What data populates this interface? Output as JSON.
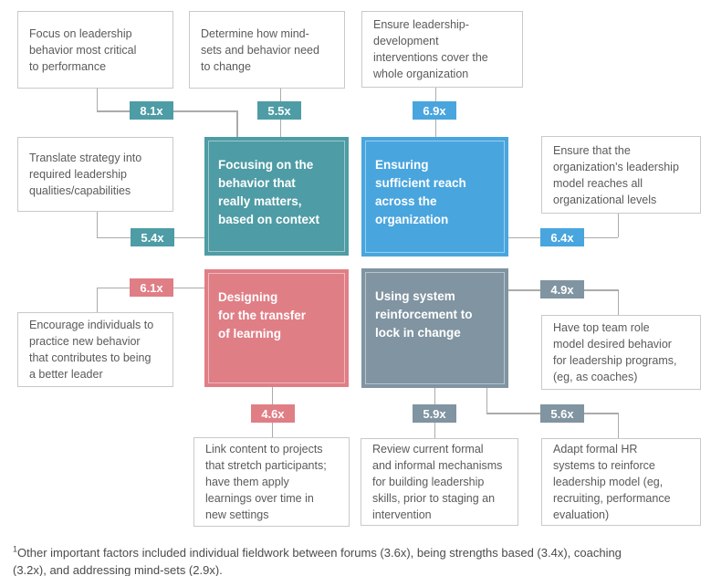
{
  "colors": {
    "teal": "#4E9CA5",
    "blue": "#49A5DE",
    "pink": "#E07E86",
    "slate": "#8094A1",
    "connector": "#ABABAB",
    "box_border": "#C9C9C9",
    "box_text": "#595A5C"
  },
  "outer_boxes": {
    "focus": {
      "lines": [
        "Focus on leadership",
        "behavior most critical",
        "to performance"
      ]
    },
    "determine": {
      "lines": [
        "Determine how mind-",
        "sets and behavior need",
        "to change"
      ]
    },
    "coverage": {
      "lines": [
        "Ensure leadership-",
        "development",
        "interventions cover the",
        "whole organization"
      ]
    },
    "translate": {
      "lines": [
        "Translate strategy into",
        "required leadership",
        "qualities/capabilities"
      ]
    },
    "model": {
      "lines": [
        "Ensure that the",
        "organization's leadership",
        "model reaches all",
        "organizational levels"
      ]
    },
    "encourage": {
      "lines": [
        "Encourage individuals to",
        "practice new behavior",
        "that contributes to being",
        "a better leader"
      ]
    },
    "role_model": {
      "lines": [
        "Have top team role",
        "model desired behavior",
        "for leadership programs,",
        "(eg, as coaches)"
      ]
    },
    "link_content": {
      "lines": [
        "Link content to projects",
        "that stretch participants;",
        "have them apply",
        "learnings over time in",
        "new settings"
      ]
    },
    "review": {
      "lines": [
        "Review current formal",
        "and informal mechanisms",
        "for building leadership",
        "skills, prior to staging an",
        "intervention"
      ]
    },
    "adapt_hr": {
      "lines": [
        "Adapt formal HR",
        "systems to reinforce",
        "leadership model (eg,",
        "recruiting, performance",
        "evaluation)"
      ]
    }
  },
  "core_boxes": {
    "focusing": {
      "lines": [
        "Focusing on the",
        "behavior that",
        "really matters,",
        "based on context"
      ]
    },
    "reach": {
      "lines": [
        "Ensuring",
        "sufficient reach",
        "across the",
        "organization"
      ]
    },
    "transfer": {
      "lines": [
        "Designing",
        "for the transfer",
        "of learning"
      ]
    },
    "reinforcement": {
      "lines": [
        "Using system",
        "reinforcement to",
        "lock in change"
      ]
    }
  },
  "badges": {
    "b81": "8.1x",
    "b55": "5.5x",
    "b69": "6.9x",
    "b54": "5.4x",
    "b64": "6.4x",
    "b61": "6.1x",
    "b49": "4.9x",
    "b46": "4.6x",
    "b59": "5.9x",
    "b56": "5.6x"
  },
  "footnote": {
    "marker": "1",
    "lines": [
      "Other important factors included individual fieldwork between forums (3.6x), being strengths based (3.4x), coaching",
      "(3.2x), and addressing mind-sets (2.9x)."
    ]
  }
}
